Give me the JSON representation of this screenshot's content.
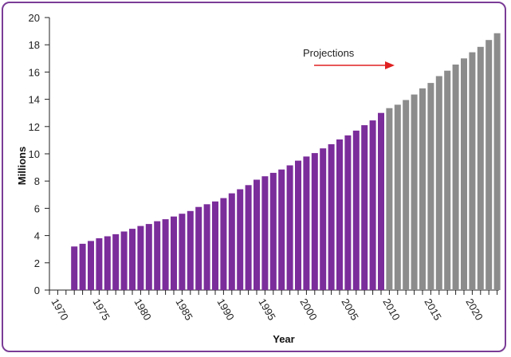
{
  "chart_data": {
    "type": "bar",
    "xlabel": "Year",
    "ylabel": "Millions",
    "ylim": [
      0,
      20
    ],
    "yticks": [
      0,
      2,
      4,
      6,
      8,
      10,
      12,
      14,
      16,
      18,
      20
    ],
    "xlim": [
      1970,
      2024
    ],
    "xticks": [
      1970,
      1975,
      1980,
      1985,
      1990,
      1995,
      2000,
      2005,
      2010,
      2015,
      2020
    ],
    "grid": false,
    "annotation": {
      "text": "Projections",
      "arrow_direction": "right"
    },
    "colors": {
      "actual": "#7b2d9b",
      "projection": "#8c8c8c",
      "frame": "#7a3c96",
      "arrow": "#e02020"
    },
    "series": [
      {
        "name": "",
        "kind": "actual",
        "x": [
          1973,
          1974,
          1975,
          1976,
          1977,
          1978,
          1979,
          1980,
          1981,
          1982,
          1983,
          1984,
          1985,
          1986,
          1987,
          1988,
          1989,
          1990,
          1991,
          1992,
          1993,
          1994,
          1995,
          1996,
          1997,
          1998,
          1999,
          2000,
          2001,
          2002,
          2003,
          2004,
          2005,
          2006,
          2007,
          2008,
          2009,
          2010
        ],
        "values": [
          3.2,
          3.4,
          3.6,
          3.8,
          3.95,
          4.1,
          4.3,
          4.5,
          4.7,
          4.85,
          5.05,
          5.2,
          5.4,
          5.6,
          5.8,
          6.1,
          6.3,
          6.5,
          6.75,
          7.1,
          7.4,
          7.7,
          8.1,
          8.35,
          8.6,
          8.85,
          9.15,
          9.5,
          9.8,
          10.05,
          10.4,
          10.7,
          11.05,
          11.35,
          11.7,
          12.1,
          12.45,
          13.0
        ]
      },
      {
        "name": "",
        "kind": "projection",
        "x": [
          2011,
          2012,
          2013,
          2014,
          2015,
          2016,
          2017,
          2018,
          2019,
          2020,
          2021,
          2022,
          2023,
          2024
        ],
        "values": [
          13.35,
          13.6,
          13.95,
          14.35,
          14.8,
          15.2,
          15.7,
          16.1,
          16.55,
          17.0,
          17.45,
          17.85,
          18.35,
          18.85
        ]
      }
    ]
  }
}
